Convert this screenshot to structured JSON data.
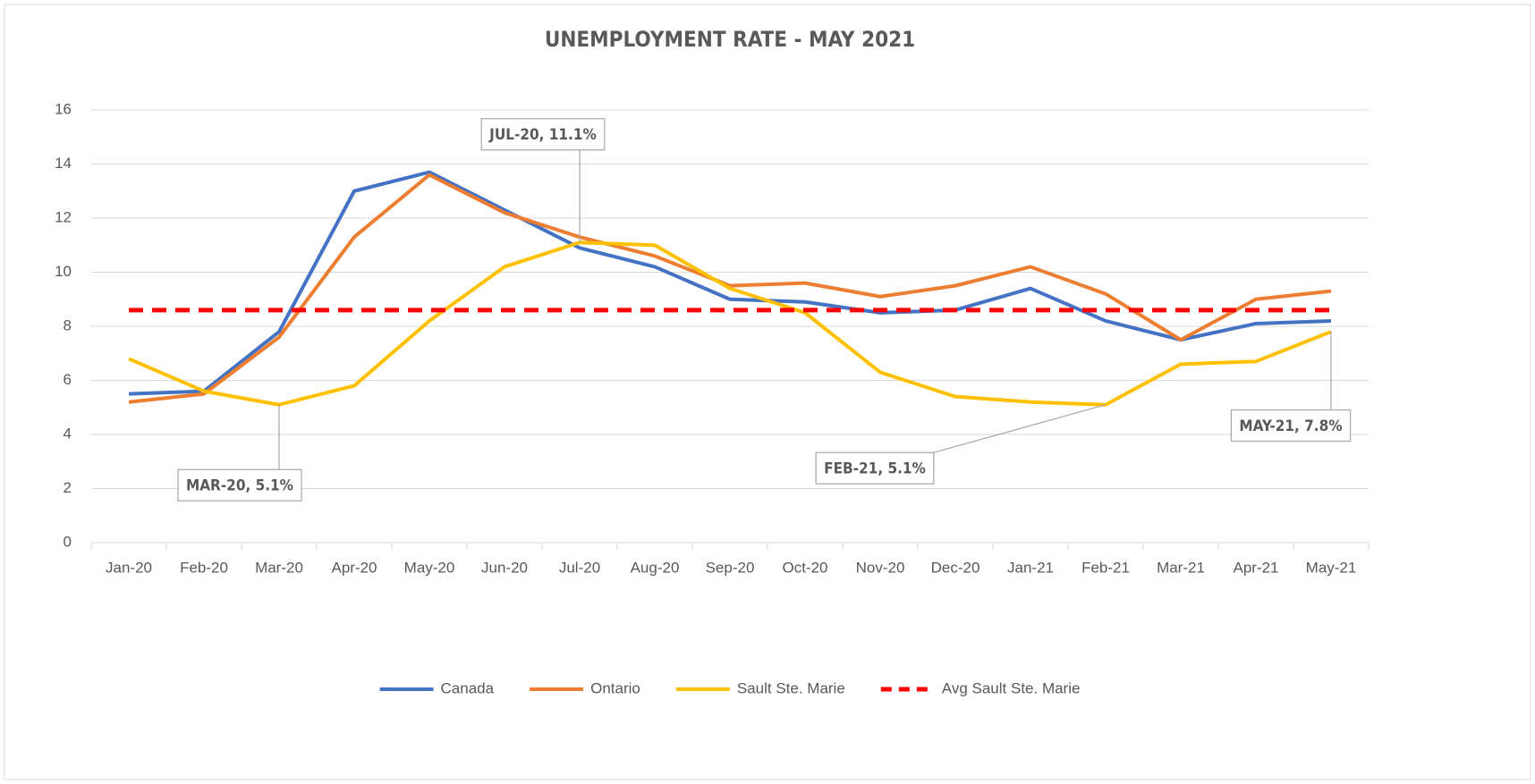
{
  "chart_data": {
    "type": "line",
    "title": "UNEMPLOYMENT RATE - MAY 2021",
    "categories": [
      "Jan-20",
      "Feb-20",
      "Mar-20",
      "Apr-20",
      "May-20",
      "Jun-20",
      "Jul-20",
      "Aug-20",
      "Sep-20",
      "Oct-20",
      "Nov-20",
      "Dec-20",
      "Jan-21",
      "Feb-21",
      "Mar-21",
      "Apr-21",
      "May-21"
    ],
    "series": [
      {
        "name": "Canada",
        "color": "#4472c4",
        "values": [
          5.5,
          5.6,
          7.8,
          13.0,
          13.7,
          12.3,
          10.9,
          10.2,
          9.0,
          8.9,
          8.5,
          8.6,
          9.4,
          8.2,
          7.5,
          8.1,
          8.2
        ]
      },
      {
        "name": "Ontario",
        "color": "#ed7d31",
        "values": [
          5.2,
          5.5,
          7.6,
          11.3,
          13.6,
          12.2,
          11.3,
          10.6,
          9.5,
          9.6,
          9.1,
          9.5,
          10.2,
          9.2,
          7.5,
          9.0,
          9.3
        ]
      },
      {
        "name": "Sault Ste. Marie",
        "color": "#ffc000",
        "values": [
          6.8,
          5.6,
          5.1,
          5.8,
          8.2,
          10.2,
          11.1,
          11.0,
          9.4,
          8.5,
          6.3,
          5.4,
          5.2,
          5.1,
          6.6,
          6.7,
          7.8
        ],
        "value_labels": [
          null,
          null,
          "MAR-20, 5.1%",
          null,
          null,
          null,
          "JUL-20, 11.1%",
          null,
          null,
          null,
          null,
          null,
          null,
          "FEB-21, 5.1%",
          null,
          null,
          "MAY-21, 7.8%"
        ]
      },
      {
        "name": "Avg Sault Ste. Marie",
        "color": "#ff0000",
        "dashed": true,
        "values": [
          8.6,
          8.6,
          8.6,
          8.6,
          8.6,
          8.6,
          8.6,
          8.6,
          8.6,
          8.6,
          8.6,
          8.6,
          8.6,
          8.6,
          8.6,
          8.6,
          8.6
        ]
      }
    ],
    "ylim": [
      0,
      16
    ],
    "yticks": [
      0,
      2,
      4,
      6,
      8,
      10,
      12,
      14,
      16
    ],
    "grid": true,
    "legend": "bottom"
  }
}
